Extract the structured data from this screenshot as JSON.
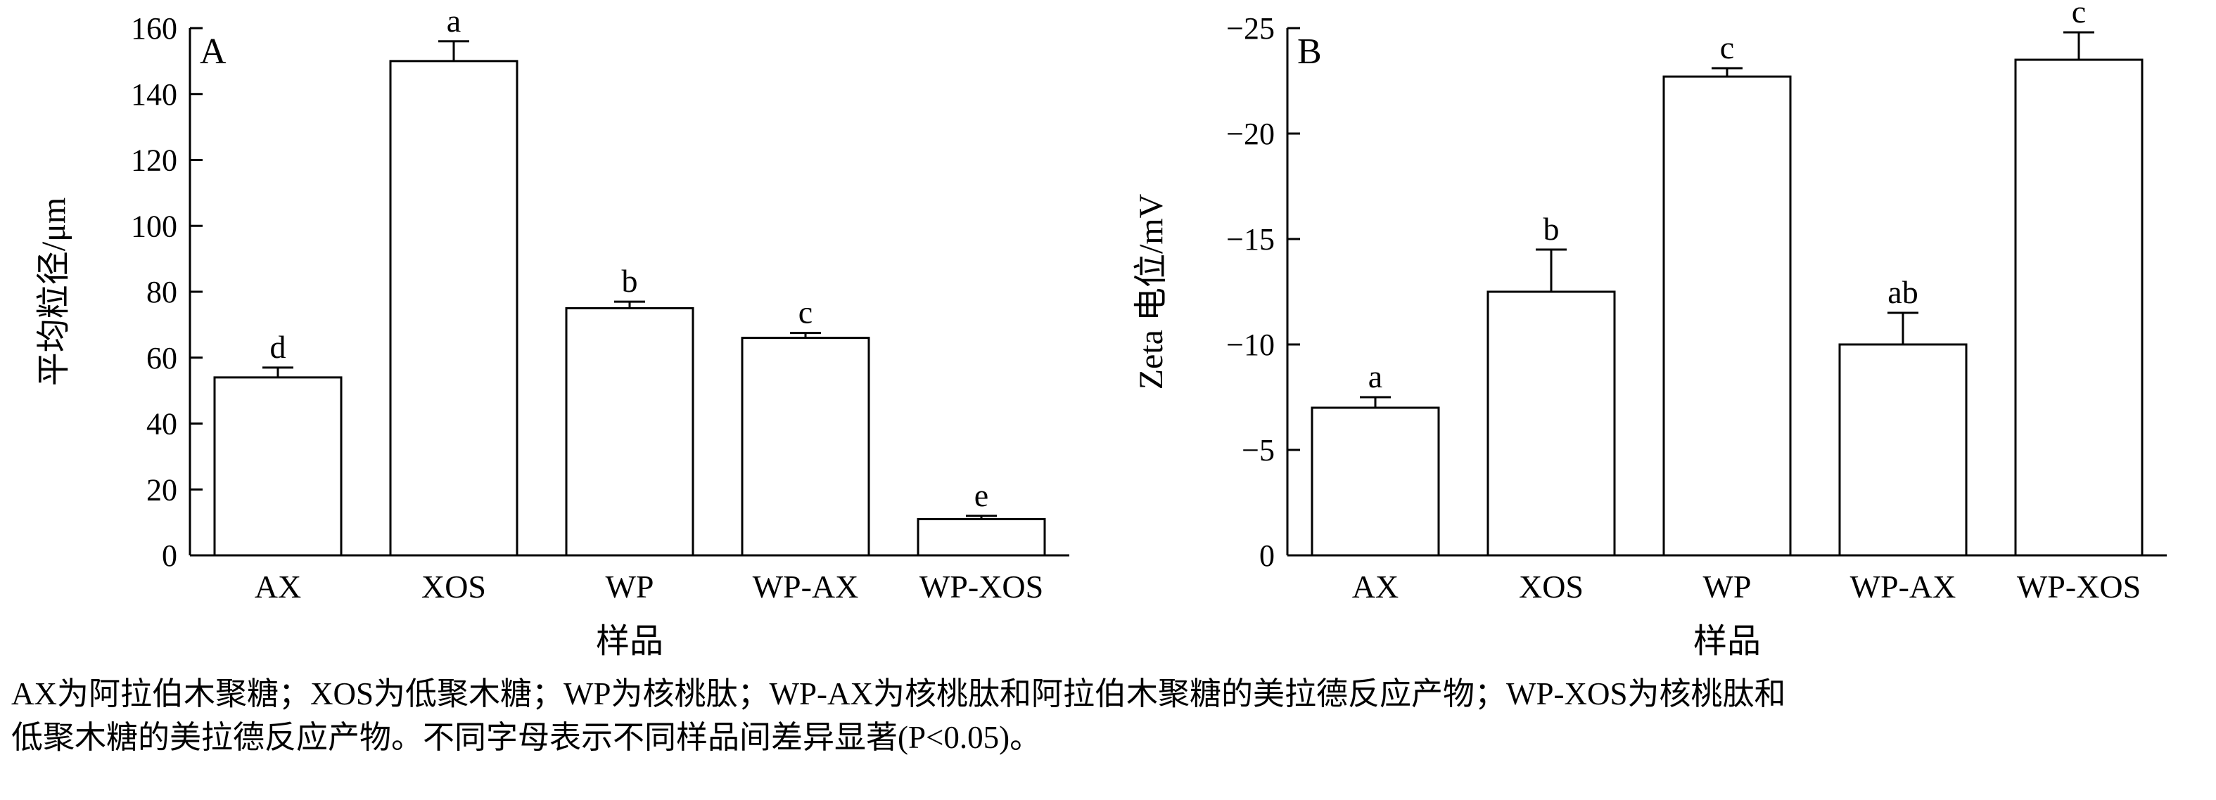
{
  "figure": {
    "background": "#ffffff",
    "axis_color": "#000000",
    "bar_fill": "#ffffff",
    "bar_stroke": "#000000"
  },
  "caption": {
    "line1": "AX为阿拉伯木聚糖；XOS为低聚木糖；WP为核桃肽；WP-AX为核桃肽和阿拉伯木聚糖的美拉德反应产物；WP-XOS为核桃肽和",
    "line2": "低聚木糖的美拉德反应产物。不同字母表示不同样品间差异显著(P<0.05)。"
  },
  "chart_data": [
    {
      "type": "bar",
      "panel_label": "A",
      "title": "",
      "xlabel": "样品",
      "ylabel": "平均粒径/μm",
      "categories": [
        "AX",
        "XOS",
        "WP",
        "WP-AX",
        "WP-XOS"
      ],
      "values": [
        54,
        150,
        75,
        66,
        11
      ],
      "errors": [
        3,
        6,
        2,
        1.5,
        1
      ],
      "sig_letters": [
        "d",
        "a",
        "b",
        "c",
        "e"
      ],
      "ylim": [
        0,
        160
      ],
      "ytick_step": 20,
      "ytick_labels": [
        "0",
        "20",
        "40",
        "60",
        "80",
        "100",
        "120",
        "140",
        "160"
      ],
      "axis_inverted": false,
      "grid": false,
      "legend": "none"
    },
    {
      "type": "bar",
      "panel_label": "B",
      "title": "",
      "xlabel": "样品",
      "ylabel": "Zeta 电位/mV",
      "categories": [
        "AX",
        "XOS",
        "WP",
        "WP-AX",
        "WP-XOS"
      ],
      "values": [
        -7,
        -12.5,
        -22.7,
        -10,
        -23.5
      ],
      "errors": [
        0.5,
        2,
        0.4,
        1.5,
        1.3
      ],
      "sig_letters": [
        "a",
        "b",
        "c",
        "ab",
        "c"
      ],
      "ylim": [
        0,
        -25
      ],
      "ytick_step": -5,
      "ytick_labels": [
        "0",
        "−5",
        "−10",
        "−15",
        "−20",
        "−25"
      ],
      "axis_inverted": true,
      "grid": false,
      "legend": "none"
    }
  ]
}
